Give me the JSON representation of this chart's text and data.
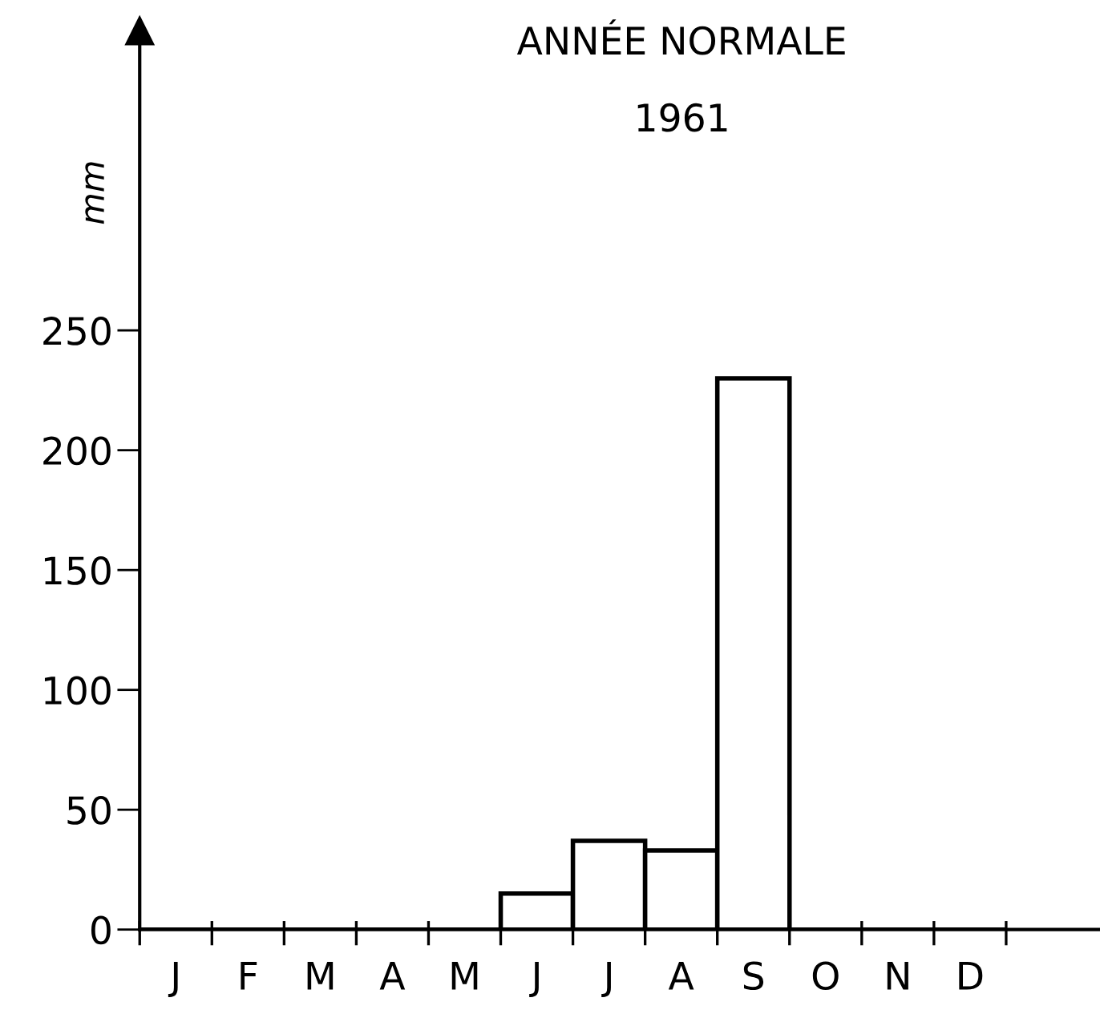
{
  "chart_data": {
    "type": "bar",
    "title": "ANNÉE NORMALE",
    "subtitle": "1961",
    "ylabel": "mm",
    "categories": [
      "J",
      "F",
      "M",
      "A",
      "M",
      "J",
      "J",
      "A",
      "S",
      "O",
      "N",
      "D"
    ],
    "values": [
      0,
      0,
      0,
      0,
      0,
      15,
      37,
      33,
      230,
      0,
      0,
      0
    ],
    "color": "#000000",
    "ylim": [
      0,
      375
    ],
    "yticks": [
      0,
      50,
      100,
      150,
      200,
      250
    ],
    "grid": false
  }
}
